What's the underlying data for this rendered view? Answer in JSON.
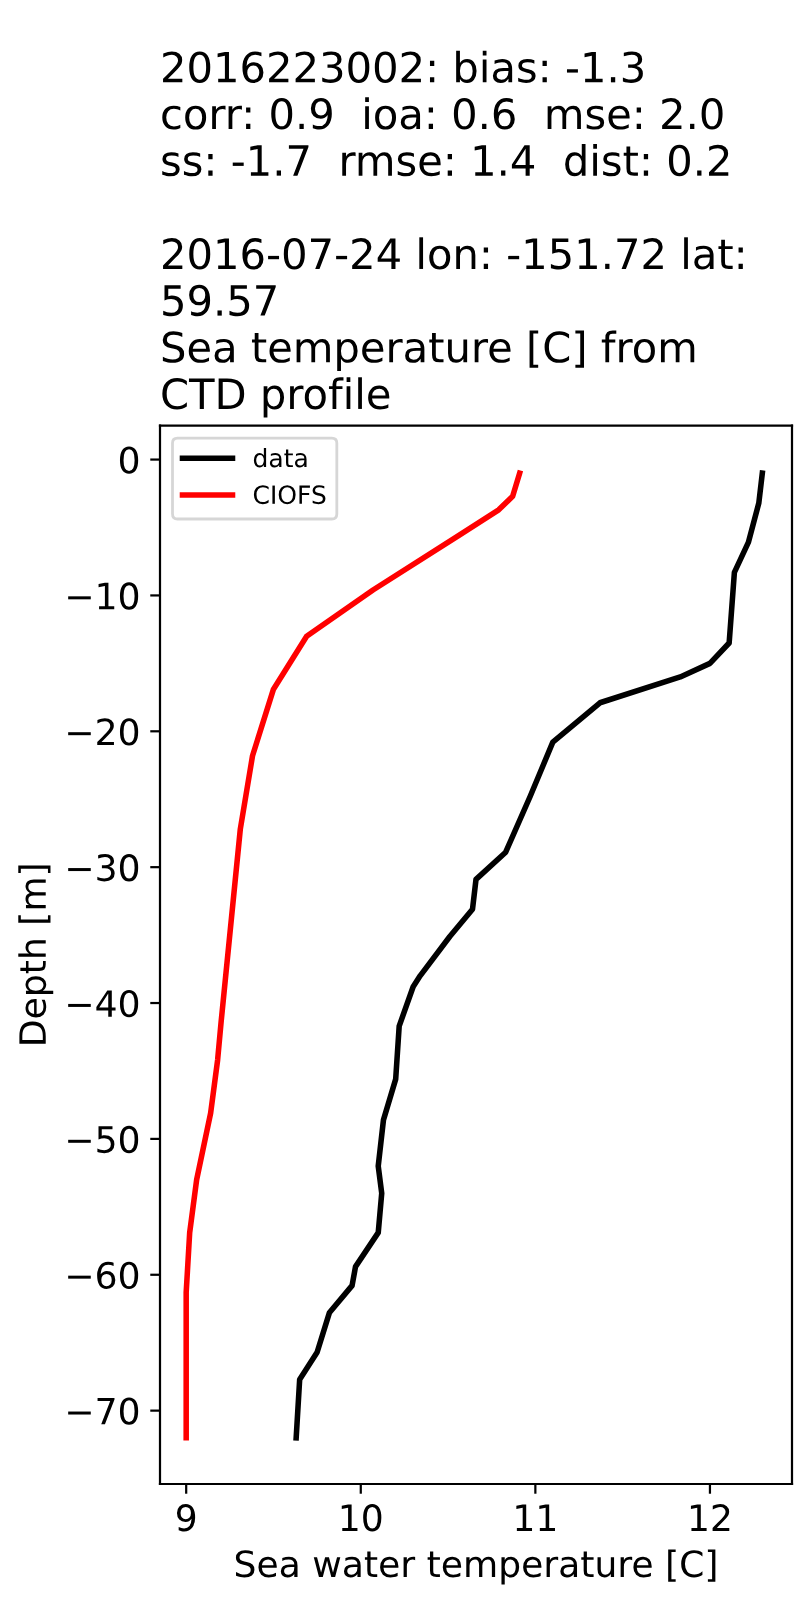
{
  "chart_data": {
    "type": "line",
    "title": "2016223002: bias: -1.3\ncorr: 0.9  ioa: 0.6  mse: 2.0\nss: -1.7  rmse: 1.4  dist: 0.2\n\n2016-07-24 lon: -151.72 lat:\n59.57\nSea temperature [C] from\nCTD profile",
    "xlabel": "Sea water temperature [C]",
    "ylabel": "Depth [m]",
    "series": [
      {
        "name": "data",
        "color": "#000000",
        "x": [
          12.3,
          12.28,
          12.22,
          12.14,
          12.11,
          12.0,
          11.83,
          11.37,
          11.1,
          10.97,
          10.83,
          10.66,
          10.64,
          10.51,
          10.34,
          10.3,
          10.22,
          10.2,
          10.13,
          10.1,
          10.12,
          10.1,
          9.97,
          9.95,
          9.82,
          9.75,
          9.65,
          9.63
        ],
        "values": [
          -1.0,
          -3.2,
          -6.1,
          -8.3,
          -13.5,
          -15,
          -16,
          -17.9,
          -20.8,
          -24.8,
          -28.9,
          -30.9,
          -33.1,
          -35.1,
          -38,
          -38.8,
          -41.7,
          -45.6,
          -48.6,
          -52,
          -54,
          -56.9,
          -59.4,
          -60.8,
          -62.8,
          -65.7,
          -67.7,
          -72
        ]
      },
      {
        "name": "CIOFS",
        "color": "#ff0000",
        "x": [
          10.91,
          10.87,
          10.79,
          10.56,
          10.07,
          9.69,
          9.5,
          9.38,
          9.31,
          9.2,
          9.18,
          9.14,
          9.06,
          9.02,
          9.0,
          9.0
        ],
        "values": [
          -1.0,
          -2.7,
          -3.7,
          -5.6,
          -9.6,
          -13,
          -16.9,
          -21.8,
          -27.2,
          -41.4,
          -44.2,
          -48.1,
          -53,
          -56.9,
          -61.3,
          -72
        ]
      }
    ],
    "xlim": [
      8.85,
      12.47
    ],
    "ylim": [
      -75.4,
      2.5
    ],
    "xticks": [
      9,
      10,
      11,
      12
    ],
    "yticks": [
      0,
      {
        "value": -10,
        "label": "−10"
      },
      {
        "value": -20,
        "label": "−20"
      },
      {
        "value": -30,
        "label": "−30"
      },
      {
        "value": -40,
        "label": "−40"
      },
      {
        "value": -50,
        "label": "−50"
      },
      {
        "value": -60,
        "label": "−60"
      },
      {
        "value": -70,
        "label": "−70"
      }
    ],
    "legend": "top left",
    "grid": false,
    "line_style": "solid",
    "marker": "none"
  }
}
